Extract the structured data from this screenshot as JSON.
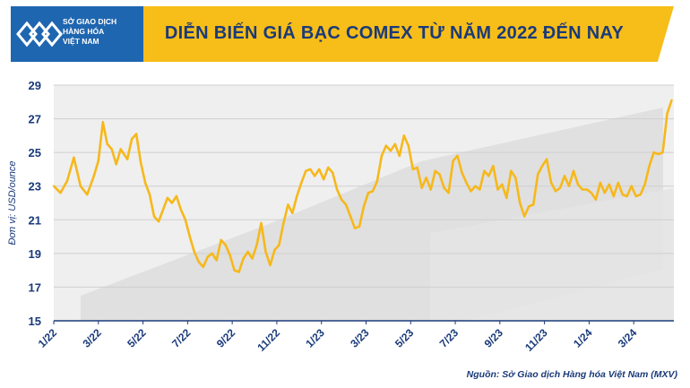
{
  "header": {
    "logo_lines": [
      "SỞ GIAO DỊCH",
      "HÀNG HÓA",
      "VIỆT NAM"
    ],
    "title": "DIỄN BIẾN GIÁ BẠC COMEX TỪ NĂM 2022 ĐẾN NAY"
  },
  "source": "Nguồn: Sở Giao dịch Hàng hóa Việt Nam (MXV)",
  "colors": {
    "line": "#f6b81b",
    "title_bar": "#f7bd19",
    "logo_bg": "#1f66b0",
    "title_text": "#1a3a7a",
    "axis_text": "#1a3a7a"
  },
  "chart_data": {
    "type": "line",
    "title": "DIỄN BIẾN GIÁ BẠC COMEX TỪ NĂM 2022 ĐẾN NAY",
    "xlabel": "",
    "ylabel": "Đơn vị: USD/ounce",
    "ylim": [
      15,
      29
    ],
    "yticks": [
      15,
      17,
      19,
      21,
      23,
      25,
      27,
      29
    ],
    "xlim": [
      0,
      27.8
    ],
    "xtick_labels": [
      "1/22",
      "3/22",
      "5/22",
      "7/22",
      "9/22",
      "11/22",
      "1/23",
      "3/23",
      "5/23",
      "7/23",
      "9/23",
      "11/23",
      "1/24",
      "3/24"
    ],
    "xtick_positions": [
      0,
      2,
      4,
      6,
      8,
      10,
      12,
      14,
      16,
      18,
      20,
      22,
      24,
      26
    ],
    "grid": "horizontal",
    "legend": "none",
    "series": [
      {
        "name": "",
        "points": [
          [
            0,
            23.0
          ],
          [
            0.3,
            22.6
          ],
          [
            0.6,
            23.3
          ],
          [
            0.9,
            24.7
          ],
          [
            1.2,
            23.0
          ],
          [
            1.5,
            22.5
          ],
          [
            1.8,
            23.6
          ],
          [
            2.0,
            24.5
          ],
          [
            2.2,
            26.8
          ],
          [
            2.4,
            25.5
          ],
          [
            2.6,
            25.2
          ],
          [
            2.8,
            24.3
          ],
          [
            3.0,
            25.2
          ],
          [
            3.3,
            24.6
          ],
          [
            3.5,
            25.8
          ],
          [
            3.7,
            26.1
          ],
          [
            3.9,
            24.4
          ],
          [
            4.1,
            23.2
          ],
          [
            4.3,
            22.5
          ],
          [
            4.5,
            21.2
          ],
          [
            4.7,
            20.9
          ],
          [
            4.9,
            21.6
          ],
          [
            5.1,
            22.3
          ],
          [
            5.3,
            22.0
          ],
          [
            5.5,
            22.4
          ],
          [
            5.7,
            21.6
          ],
          [
            5.9,
            21.0
          ],
          [
            6.1,
            20.0
          ],
          [
            6.3,
            19.1
          ],
          [
            6.5,
            18.5
          ],
          [
            6.7,
            18.2
          ],
          [
            6.9,
            18.8
          ],
          [
            7.1,
            19.0
          ],
          [
            7.3,
            18.6
          ],
          [
            7.5,
            19.8
          ],
          [
            7.7,
            19.5
          ],
          [
            7.9,
            18.9
          ],
          [
            8.1,
            18.0
          ],
          [
            8.3,
            17.9
          ],
          [
            8.5,
            18.7
          ],
          [
            8.7,
            19.1
          ],
          [
            8.9,
            18.7
          ],
          [
            9.1,
            19.5
          ],
          [
            9.3,
            20.8
          ],
          [
            9.5,
            19.1
          ],
          [
            9.7,
            18.3
          ],
          [
            9.9,
            19.2
          ],
          [
            10.1,
            19.5
          ],
          [
            10.3,
            20.8
          ],
          [
            10.5,
            21.9
          ],
          [
            10.7,
            21.4
          ],
          [
            10.9,
            22.4
          ],
          [
            11.1,
            23.2
          ],
          [
            11.3,
            23.9
          ],
          [
            11.5,
            24.0
          ],
          [
            11.7,
            23.6
          ],
          [
            11.9,
            24.0
          ],
          [
            12.1,
            23.4
          ],
          [
            12.3,
            24.1
          ],
          [
            12.5,
            23.8
          ],
          [
            12.7,
            22.8
          ],
          [
            12.9,
            22.2
          ],
          [
            13.1,
            21.9
          ],
          [
            13.3,
            21.2
          ],
          [
            13.5,
            20.5
          ],
          [
            13.7,
            20.6
          ],
          [
            13.9,
            21.8
          ],
          [
            14.1,
            22.6
          ],
          [
            14.3,
            22.7
          ],
          [
            14.5,
            23.3
          ],
          [
            14.7,
            24.8
          ],
          [
            14.9,
            25.4
          ],
          [
            15.1,
            25.1
          ],
          [
            15.3,
            25.5
          ],
          [
            15.5,
            24.8
          ],
          [
            15.7,
            26.0
          ],
          [
            15.9,
            25.4
          ],
          [
            16.1,
            24.0
          ],
          [
            16.3,
            24.1
          ],
          [
            16.5,
            22.9
          ],
          [
            16.7,
            23.5
          ],
          [
            16.9,
            22.8
          ],
          [
            17.1,
            23.9
          ],
          [
            17.3,
            23.7
          ],
          [
            17.5,
            22.9
          ],
          [
            17.7,
            22.6
          ],
          [
            17.9,
            24.5
          ],
          [
            18.1,
            24.8
          ],
          [
            18.3,
            23.8
          ],
          [
            18.5,
            23.2
          ],
          [
            18.7,
            22.7
          ],
          [
            18.9,
            23.0
          ],
          [
            19.1,
            22.8
          ],
          [
            19.3,
            23.9
          ],
          [
            19.5,
            23.6
          ],
          [
            19.7,
            24.2
          ],
          [
            19.9,
            22.8
          ],
          [
            20.1,
            23.1
          ],
          [
            20.3,
            22.3
          ],
          [
            20.5,
            23.9
          ],
          [
            20.7,
            23.5
          ],
          [
            20.9,
            22.0
          ],
          [
            21.1,
            21.2
          ],
          [
            21.3,
            21.8
          ],
          [
            21.5,
            21.9
          ],
          [
            21.7,
            23.7
          ],
          [
            21.9,
            24.2
          ],
          [
            22.1,
            24.6
          ],
          [
            22.3,
            23.2
          ],
          [
            22.5,
            22.7
          ],
          [
            22.7,
            22.9
          ],
          [
            22.9,
            23.6
          ],
          [
            23.1,
            23.0
          ],
          [
            23.3,
            23.9
          ],
          [
            23.5,
            23.1
          ],
          [
            23.7,
            22.8
          ],
          [
            23.9,
            22.8
          ],
          [
            24.1,
            22.6
          ],
          [
            24.3,
            22.2
          ],
          [
            24.5,
            23.2
          ],
          [
            24.7,
            22.6
          ],
          [
            24.9,
            23.1
          ],
          [
            25.1,
            22.4
          ],
          [
            25.3,
            23.2
          ],
          [
            25.5,
            22.5
          ],
          [
            25.7,
            22.4
          ],
          [
            25.9,
            23.0
          ],
          [
            26.1,
            22.4
          ],
          [
            26.3,
            22.5
          ],
          [
            26.5,
            23.1
          ],
          [
            26.7,
            24.2
          ],
          [
            26.9,
            25.0
          ],
          [
            27.1,
            24.9
          ],
          [
            27.3,
            25.0
          ],
          [
            27.5,
            27.3
          ],
          [
            27.7,
            28.1
          ]
        ]
      }
    ]
  }
}
